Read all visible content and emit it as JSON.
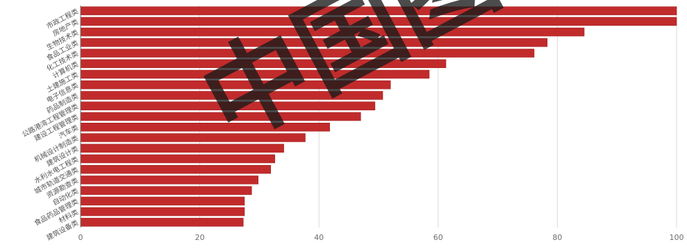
{
  "watermark": "中国图",
  "colors": {
    "bar": "#c12b2b",
    "bar_edge": "#a52222"
  },
  "chart_data": {
    "type": "bar",
    "orientation": "horizontal",
    "title": "",
    "xlabel": "",
    "ylabel": "",
    "xlim": [
      0,
      100
    ],
    "xticks": [
      0,
      20,
      40,
      60,
      80,
      100
    ],
    "grid": true,
    "categories": [
      "市政工程类",
      "房地产类",
      "生物技术类",
      "食品工业类",
      "化工技术类",
      "计算机类",
      "土建施工类",
      "电子信息类",
      "药品制造类",
      "公路港湾工程管理类",
      "建设工程管理类",
      "汽车类",
      "机械设计制造类",
      "建筑设计类",
      "水利水电工程类",
      "城市轨道交通类",
      "资源勘查类",
      "自动化类",
      "食品药品管理类",
      "材料类",
      "建筑设备类"
    ],
    "values": [
      100,
      100,
      84.5,
      78.3,
      76.1,
      61.3,
      58.5,
      52.0,
      50.7,
      49.4,
      47.0,
      41.8,
      37.7,
      34.1,
      32.6,
      31.9,
      29.8,
      28.7,
      27.5,
      27.5,
      27.3
    ]
  }
}
